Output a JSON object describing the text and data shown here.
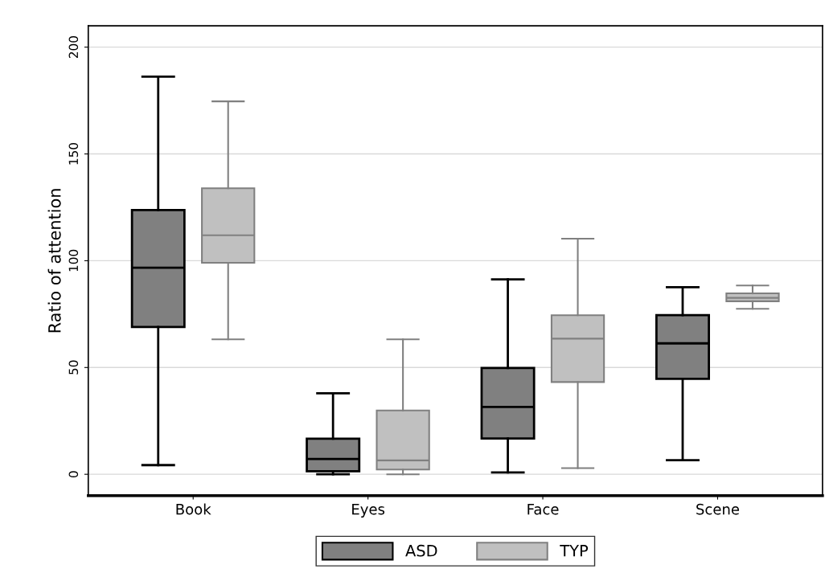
{
  "chart_data": {
    "type": "box",
    "ylabel": "Ratio of attention",
    "categories": [
      "Book",
      "Eyes",
      "Face",
      "Scene"
    ],
    "ylim": [
      -10,
      210
    ],
    "yticks": [
      0,
      50,
      100,
      150,
      200
    ],
    "grid": "y",
    "legend": "bottom",
    "series": [
      {
        "name": "ASD",
        "color": "#808080",
        "boxes": [
          {
            "low": 4.3,
            "q1": 69,
            "median": 96.7,
            "q3": 123.7,
            "high": 186.2
          },
          {
            "low": 0,
            "q1": 1.4,
            "median": 7.2,
            "q3": 16.7,
            "high": 37.9
          },
          {
            "low": 0.9,
            "q1": 16.8,
            "median": 31.5,
            "q3": 49.8,
            "high": 91.3
          },
          {
            "low": 6.6,
            "q1": 44.7,
            "median": 61.3,
            "q3": 74.5,
            "high": 87.6
          }
        ]
      },
      {
        "name": "TYP",
        "color": "#c0c0c0",
        "boxes": [
          {
            "low": 63.2,
            "q1": 99,
            "median": 111.9,
            "q3": 133.9,
            "high": 174.6
          },
          {
            "low": 0,
            "q1": 2.2,
            "median": 6.5,
            "q3": 29.9,
            "high": 63.2
          },
          {
            "low": 2.9,
            "q1": 43.2,
            "median": 63.5,
            "q3": 74.5,
            "high": 110.3
          },
          {
            "low": 77.5,
            "q1": 81.0,
            "median": 82.6,
            "q3": 84.7,
            "high": 88.4
          }
        ]
      }
    ]
  }
}
